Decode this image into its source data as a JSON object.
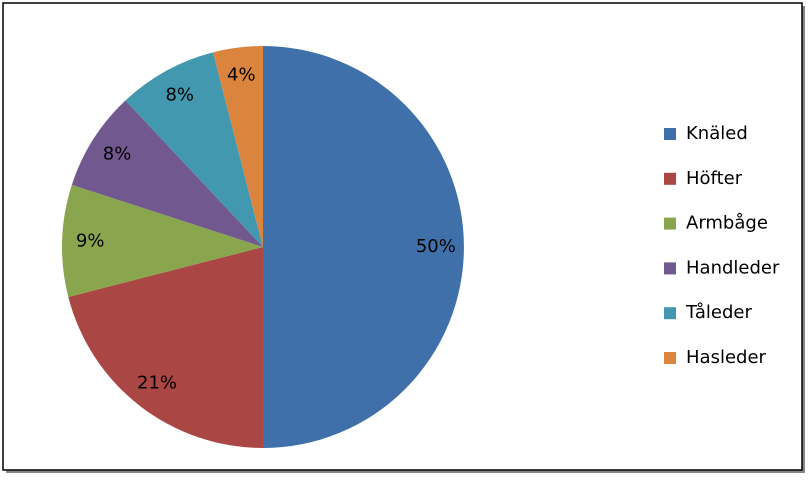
{
  "chart_data": {
    "type": "pie",
    "categories": [
      "Knäled",
      "Höfter",
      "Armbåge",
      "Handleder",
      "Tåleder",
      "Hasleder"
    ],
    "values": [
      50,
      21,
      9,
      8,
      8,
      4
    ],
    "value_labels": [
      "50%",
      "21%",
      "9%",
      "8%",
      "8%",
      "4%"
    ],
    "colors": [
      "#4070aa",
      "#aa4643",
      "#89a54e",
      "#71588f",
      "#4198af",
      "#db843d"
    ],
    "legend": "right"
  }
}
